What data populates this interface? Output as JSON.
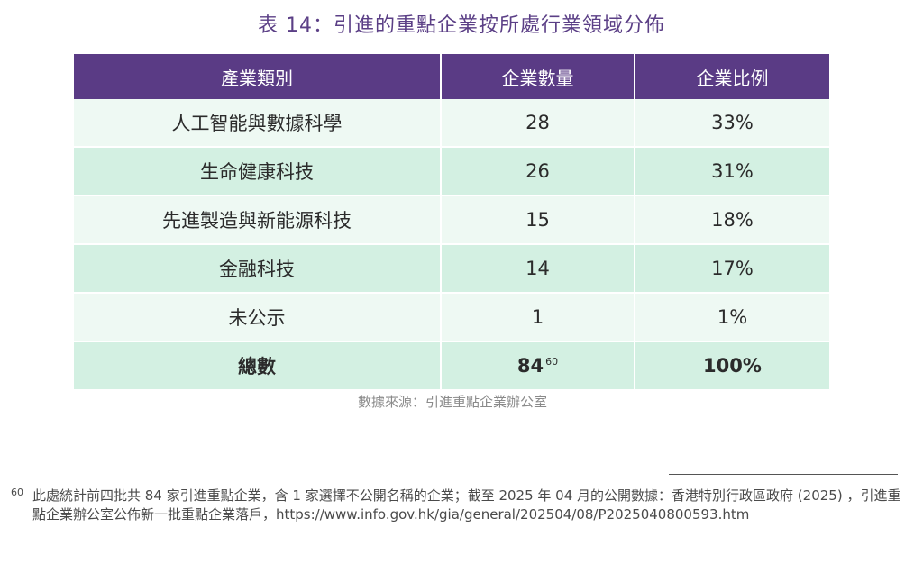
{
  "title": "表 14：引進的重點企業按所處行業領域分佈",
  "table": {
    "headers": [
      "產業類別",
      "企業數量",
      "企業比例"
    ],
    "rows": [
      {
        "category": "人工智能與數據科學",
        "count": "28",
        "share": "33%"
      },
      {
        "category": "生命健康科技",
        "count": "26",
        "share": "31%"
      },
      {
        "category": "先進製造與新能源科技",
        "count": "15",
        "share": "18%"
      },
      {
        "category": "金融科技",
        "count": "14",
        "share": "17%"
      },
      {
        "category": "未公示",
        "count": "1",
        "share": "1%"
      }
    ],
    "total": {
      "category": "總數",
      "count": "84",
      "footnote_ref": "60",
      "share": "100%"
    }
  },
  "source": "數據來源：引進重點企業辦公室",
  "footnote": {
    "number": "60",
    "text": "此處統計前四批共 84 家引進重點企業，含 1 家選擇不公開名稱的企業；截至 2025 年 04 月的公開數據：香港特別行政區政府 (2025) ，引進重點企業辦公室公佈新一批重點企業落戶，https://www.info.gov.hk/gia/general/202504/08/P2025040800593.htm"
  },
  "colors": {
    "header_bg": "#5a3b85",
    "title": "#5b3f86",
    "row_light": "#eef9f3",
    "row_dark": "#d3f0e2"
  }
}
